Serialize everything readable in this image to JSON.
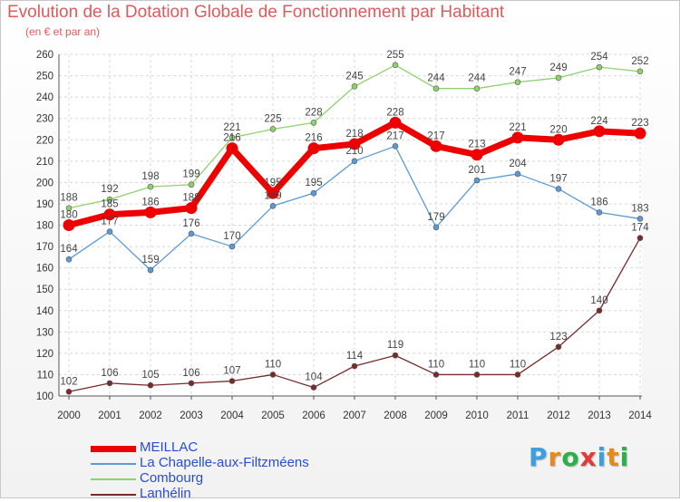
{
  "header": {
    "title": "Evolution de la Dotation Globale de Fonctionnement par Habitant",
    "subtitle": "(en € et par an)"
  },
  "brand": {
    "name": "Proxiti",
    "colors": [
      "#3aa0e0",
      "#e58a1f",
      "#2bb04a",
      "#e03a3a",
      "#3aa0e0",
      "#e58a1f",
      "#2bb04a"
    ]
  },
  "chart_data": {
    "type": "line",
    "title": "Evolution de la Dotation Globale de Fonctionnement par Habitant",
    "subtitle": "(en € et par an)",
    "xlabel": "",
    "ylabel": "",
    "ylim": [
      100,
      260
    ],
    "yticks": [
      100,
      110,
      120,
      130,
      140,
      150,
      160,
      170,
      180,
      190,
      200,
      210,
      220,
      230,
      240,
      250,
      260
    ],
    "grid": true,
    "legend_position": "bottom-left",
    "x": [
      "2000",
      "2001",
      "2002",
      "2003",
      "2004",
      "2005",
      "2006",
      "2007",
      "2008",
      "2009",
      "2010",
      "2011",
      "2012",
      "2013",
      "2014"
    ],
    "series": [
      {
        "name": "Combourg",
        "color": "#8fd16a",
        "values": [
          188,
          192,
          198,
          199,
          221,
          225,
          228,
          245,
          255,
          244,
          244,
          247,
          249,
          254,
          252
        ]
      },
      {
        "name": "La Chapelle-aux-Filtzméens",
        "color": "#5b9ad5",
        "values": [
          164,
          177,
          159,
          176,
          170,
          189,
          195,
          210,
          217,
          179,
          201,
          204,
          197,
          186,
          183
        ]
      },
      {
        "name": "Lanhélin",
        "color": "#7a2a2a",
        "values": [
          102,
          106,
          105,
          106,
          107,
          110,
          104,
          114,
          119,
          110,
          110,
          110,
          123,
          140,
          174
        ]
      },
      {
        "name": "MEILLAC",
        "color": "#ee0000",
        "values": [
          180,
          185,
          186,
          188,
          216,
          195,
          216,
          218,
          228,
          217,
          213,
          221,
          220,
          224,
          223
        ]
      }
    ],
    "legend_order": [
      "MEILLAC",
      "La Chapelle-aux-Filtzméens",
      "Combourg",
      "Lanhélin"
    ]
  }
}
